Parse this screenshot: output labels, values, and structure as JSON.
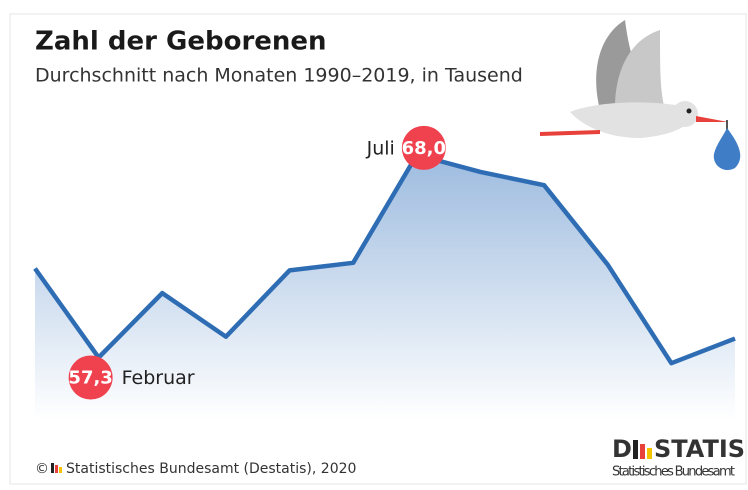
{
  "chart_data": {
    "type": "area",
    "title": "Zahl der Geborenen",
    "subtitle": "Durchschnitt nach Monaten 1990–2019, in Tausend",
    "categories": [
      null,
      "Februar",
      null,
      null,
      null,
      null,
      "Juli",
      null,
      null,
      null,
      null,
      null
    ],
    "values": [
      62.0,
      57.3,
      60.7,
      58.4,
      61.9,
      62.3,
      68.0,
      67.1,
      66.4,
      62.2,
      57.0,
      58.3
    ],
    "value_labels": [
      null,
      "57,3",
      null,
      null,
      null,
      null,
      "68,0",
      null,
      null,
      null,
      null,
      null
    ],
    "color": "#2e6db4",
    "label_color": "#f0414f",
    "ylim": [
      54,
      70
    ],
    "source_prefix": "©",
    "source": "Statistisches Bundesamt (Destatis), 2020",
    "logo": {
      "start": "D",
      "end": "STATIS",
      "subtitle": "Statistisches Bundesamt"
    }
  }
}
